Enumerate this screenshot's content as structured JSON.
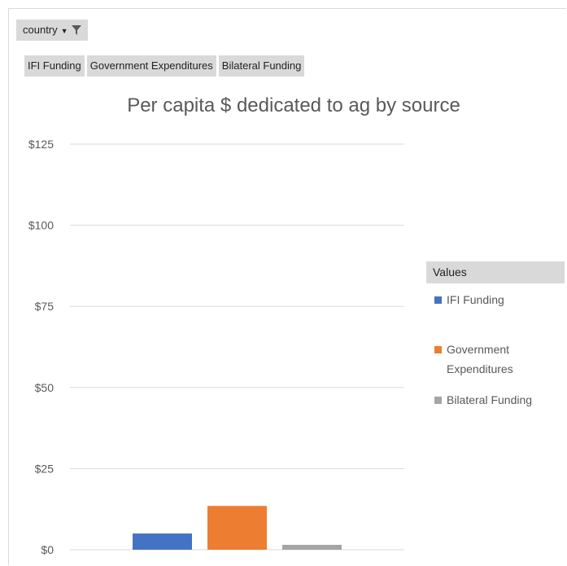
{
  "filter": {
    "label": "country"
  },
  "fields": [
    "IFI Funding",
    "Government Expenditures",
    "Bilateral Funding"
  ],
  "legend": {
    "header": "Values"
  },
  "colors": {
    "ifi": "#4472c4",
    "gov": "#ed7d31",
    "bilateral": "#a5a5a5",
    "grid": "#d9d9d9"
  },
  "chart_data": {
    "type": "bar",
    "title": "Per capita $ dedicated to ag by source",
    "xlabel": "",
    "ylabel": "",
    "ylim": [
      0,
      125
    ],
    "yticks": [
      0,
      25,
      50,
      75,
      100,
      125
    ],
    "ytick_labels": [
      "$0",
      "$25",
      "$50",
      "$75",
      "$100",
      "$125"
    ],
    "categories": [
      ""
    ],
    "series": [
      {
        "name": "IFI Funding",
        "values": [
          5
        ]
      },
      {
        "name": "Government Expenditures",
        "values": [
          13.5
        ]
      },
      {
        "name": "Bilateral Funding",
        "values": [
          1.5
        ]
      }
    ],
    "grid": true,
    "legend_position": "right"
  }
}
